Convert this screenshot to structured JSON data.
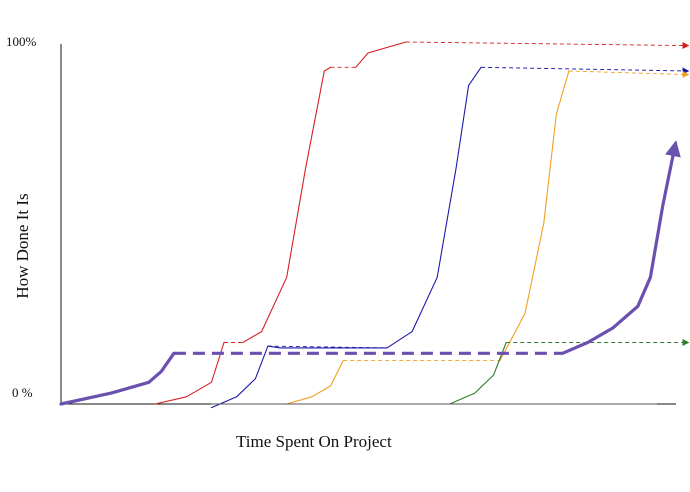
{
  "chart_data": {
    "type": "line",
    "title": "",
    "xlabel": "Time Spent On Project",
    "ylabel": "How Done It Is",
    "y_tick_labels": [
      "100%",
      "0 %"
    ],
    "ylim": [
      0,
      100
    ],
    "xlim": [
      0,
      100
    ],
    "grid": false,
    "legend": "none",
    "series": [
      {
        "color": "#d42020",
        "style": "solid",
        "points": [
          [
            15,
            0
          ],
          [
            20,
            2
          ],
          [
            24,
            6
          ],
          [
            26,
            17
          ],
          [
            29,
            17
          ],
          [
            32,
            20
          ],
          [
            36,
            35
          ],
          [
            39,
            65
          ],
          [
            42,
            92
          ],
          [
            43,
            93
          ],
          [
            47,
            93
          ],
          [
            49,
            97
          ],
          [
            55,
            100
          ]
        ],
        "dashed_segments": [
          [
            [
              26,
              17
            ],
            [
              29,
              17
            ]
          ],
          [
            [
              43,
              93
            ],
            [
              47,
              93
            ]
          ],
          [
            [
              55,
              100
            ],
            [
              100,
              99
            ]
          ]
        ],
        "arrow_end": true
      },
      {
        "color": "#1a1aaa",
        "style": "solid",
        "points": [
          [
            24,
            -1
          ],
          [
            28,
            2
          ],
          [
            31,
            7
          ],
          [
            33,
            16
          ],
          [
            35,
            15.5
          ],
          [
            52,
            15.5
          ],
          [
            56,
            20
          ],
          [
            60,
            35
          ],
          [
            63,
            65
          ],
          [
            65,
            88
          ],
          [
            67,
            93
          ]
        ],
        "dashed_segments": [
          [
            [
              33,
              16
            ],
            [
              52,
              15.5
            ]
          ],
          [
            [
              67,
              93
            ],
            [
              100,
              92
            ]
          ]
        ],
        "arrow_end": true
      },
      {
        "color": "#f0a020",
        "style": "solid",
        "points": [
          [
            36,
            0
          ],
          [
            40,
            2
          ],
          [
            43,
            5
          ],
          [
            45,
            12
          ],
          [
            70,
            12
          ],
          [
            74,
            25
          ],
          [
            77,
            50
          ],
          [
            79,
            80
          ],
          [
            81,
            92
          ]
        ],
        "dashed_segments": [
          [
            [
              45,
              12
            ],
            [
              70,
              12
            ]
          ],
          [
            [
              81,
              92
            ],
            [
              100,
              91
            ]
          ]
        ],
        "arrow_end": true
      },
      {
        "color": "#2e7d2e",
        "style": "solid",
        "points": [
          [
            62,
            0
          ],
          [
            66,
            3
          ],
          [
            69,
            8
          ],
          [
            71,
            17
          ]
        ],
        "dashed_segments": [
          [
            [
              71,
              17
            ],
            [
              100,
              17
            ]
          ]
        ],
        "arrow_end": true
      },
      {
        "color": "#6b50b0",
        "style": "thick",
        "points": [
          [
            0,
            0
          ],
          [
            8,
            3
          ],
          [
            14,
            6
          ],
          [
            16,
            9
          ],
          [
            18,
            14
          ],
          [
            80,
            14
          ],
          [
            84,
            17
          ],
          [
            88,
            21
          ],
          [
            92,
            27
          ],
          [
            94,
            35
          ],
          [
            96,
            55
          ],
          [
            98,
            72
          ]
        ],
        "dashed_segments": [
          [
            [
              18,
              14
            ],
            [
              80,
              14
            ]
          ]
        ],
        "arrow_end": true
      },
      {
        "color": "#555555",
        "style": "thin",
        "points": [
          [
            24,
            0
          ],
          [
            95,
            0
          ]
        ],
        "dashed_segments": [],
        "arrow_end": false
      }
    ]
  }
}
